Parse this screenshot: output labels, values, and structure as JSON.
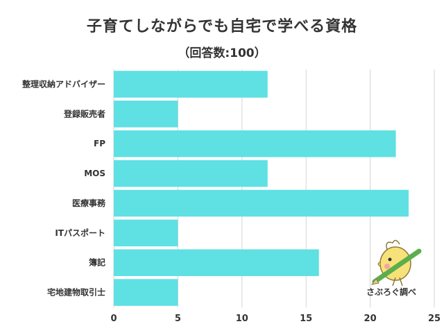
{
  "chart_data": {
    "type": "bar",
    "orientation": "horizontal",
    "title": "子育てしながらでも自宅で学べる資格",
    "subtitle": "（回答数:100）",
    "categories": [
      "整理収納アドバイザー",
      "登録販売者",
      "FP",
      "MOS",
      "医療事務",
      "ITパスポート",
      "簿記",
      "宅地建物取引士"
    ],
    "values": [
      12,
      5,
      22,
      12,
      23,
      5,
      16,
      5
    ],
    "xlim": [
      0,
      25
    ],
    "xticks": [
      "0",
      "5",
      "10",
      "15",
      "20",
      "25"
    ],
    "grid": true,
    "bar_color": "#5fe0e3"
  },
  "watermark": {
    "text": "さぶろぐ調べ"
  },
  "colors": {
    "bar": "#5fe0e3",
    "grid": "#d4d4d4",
    "text": "#333333"
  }
}
